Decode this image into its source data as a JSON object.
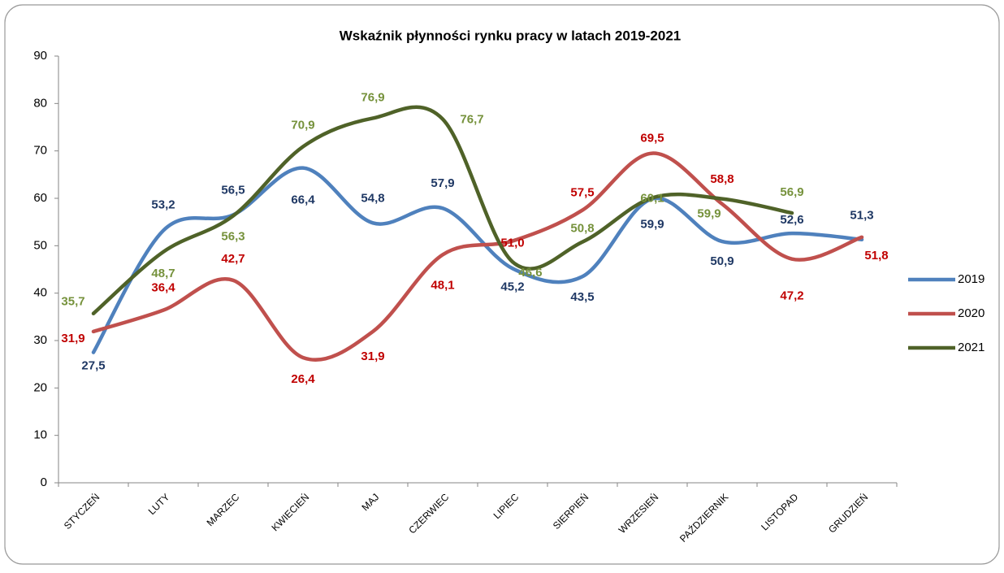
{
  "chart_data": {
    "type": "line",
    "title": "Wskaźnik płynności rynku pracy w latach 2019-2021",
    "categories": [
      "STYCZEŃ",
      "LUTY",
      "MARZEC",
      "KWIECIEŃ",
      "MAJ",
      "CZERWIEC",
      "LIPIEC",
      "SIERPIEŃ",
      "WRZESIEŃ",
      "PAŹDZIERNIK",
      "LISTOPAD",
      "GRUDZIEŃ"
    ],
    "series": [
      {
        "name": "2019",
        "color": "#4f81bd",
        "label_color": "#1f3864",
        "values": [
          27.5,
          53.2,
          56.5,
          66.4,
          54.8,
          57.9,
          45.2,
          43.5,
          59.9,
          50.9,
          52.6,
          51.3
        ],
        "value_labels": [
          "27,5",
          "53,2",
          "56,5",
          "66,4",
          "54,8",
          "57,9",
          "45,2",
          "43,5",
          "59,9",
          "50,9",
          "52,6",
          "51,3"
        ]
      },
      {
        "name": "2020",
        "color": "#c0504d",
        "label_color": "#c00000",
        "values": [
          31.9,
          36.4,
          42.7,
          26.4,
          31.9,
          48.1,
          51.0,
          57.5,
          69.5,
          58.8,
          47.2,
          51.8
        ],
        "value_labels": [
          "31,9",
          "36,4",
          "42,7",
          "26,4",
          "31,9",
          "48,1",
          "51,0",
          "57,5",
          "69,5",
          "58,8",
          "47,2",
          "51,8"
        ]
      },
      {
        "name": "2021",
        "color": "#4f6228",
        "label_color": "#76923c",
        "values": [
          35.7,
          48.7,
          56.3,
          70.9,
          76.9,
          76.7,
          46.6,
          50.8,
          60.1,
          59.9,
          56.9,
          null
        ],
        "value_labels": [
          "35,7",
          "48,7",
          "56,3",
          "70,9",
          "76,9",
          "76,7",
          "46,6",
          "50,8",
          "60,1",
          "59,9",
          "56,9",
          null
        ]
      }
    ],
    "ylim": [
      0,
      90
    ],
    "yticks": [
      0,
      10,
      20,
      30,
      40,
      50,
      60,
      70,
      80,
      90
    ],
    "grid": false,
    "smooth": true,
    "legend": "right"
  }
}
